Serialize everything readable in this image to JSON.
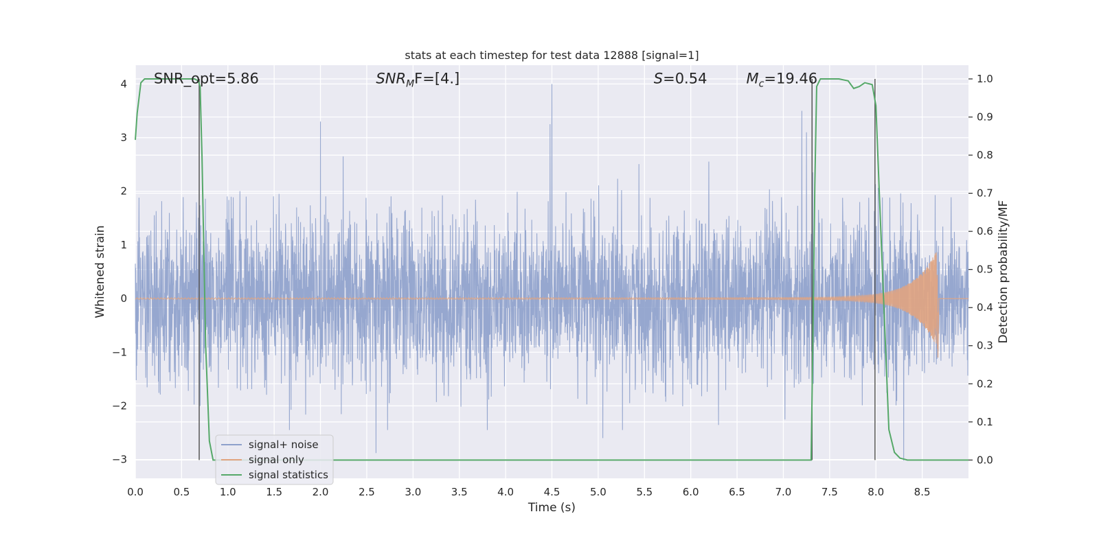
{
  "chart_data": {
    "type": "line",
    "title": "stats at each timestep for test data 12888 [signal=1]",
    "xlabel": "Time (s)",
    "ylabel": "Whitened strain",
    "ylabel_right": "Detection probability/MF",
    "xlim": [
      0.0,
      9.0
    ],
    "ylim": [
      -3.35,
      4.35
    ],
    "ylim_right": [
      -0.048,
      1.036
    ],
    "xticks": [
      0.0,
      0.5,
      1.0,
      1.5,
      2.0,
      2.5,
      3.0,
      3.5,
      4.0,
      4.5,
      5.0,
      5.5,
      6.0,
      6.5,
      7.0,
      7.5,
      8.0,
      8.5
    ],
    "xtick_labels": [
      "0.0",
      "0.5",
      "1.0",
      "1.5",
      "2.0",
      "2.5",
      "3.0",
      "3.5",
      "4.0",
      "4.5",
      "5.0",
      "5.5",
      "6.0",
      "6.5",
      "7.0",
      "7.5",
      "8.0",
      "8.5"
    ],
    "yticks": [
      -3,
      -2,
      -1,
      0,
      1,
      2,
      3,
      4
    ],
    "ytick_labels": [
      "−3",
      "−2",
      "−1",
      "0",
      "1",
      "2",
      "3",
      "4"
    ],
    "yticks_right": [
      0.0,
      0.1,
      0.2,
      0.3,
      0.4,
      0.5,
      0.6,
      0.7,
      0.8,
      0.9,
      1.0
    ],
    "ytick_labels_right": [
      "0.0",
      "0.1",
      "0.2",
      "0.3",
      "0.4",
      "0.5",
      "0.6",
      "0.7",
      "0.8",
      "0.9",
      "1.0"
    ],
    "grid": true,
    "legend_position": "lower-left",
    "colors": {
      "signal_noise": "#8da0cb",
      "signal_only": "#e1a47f",
      "statistics": "#55a868",
      "vline": "#555555",
      "background": "#eaeaf2",
      "grid": "#ffffff"
    },
    "series": [
      {
        "name": "signal+ noise",
        "axis": "left",
        "description_values": {
          "noise_std": 0.75,
          "peak_max": 4.0,
          "peak_min": -3.02,
          "x_range": [
            0.0,
            9.0
          ],
          "notable_peaks": [
            [
              2.0,
              3.3
            ],
            [
              4.5,
              4.0
            ],
            [
              4.48,
              3.25
            ],
            [
              7.2,
              3.5
            ],
            [
              7.25,
              3.1
            ],
            [
              0.7,
              -2.0
            ],
            [
              5.05,
              -2.6
            ],
            [
              8.3,
              -3.02
            ],
            [
              2.6,
              -2.88
            ]
          ]
        }
      },
      {
        "name": "signal only",
        "axis": "left",
        "description_values": {
          "type": "chirp",
          "t_merger": 8.67,
          "peak_amplitude": 0.95,
          "min_amplitude": -1.1
        }
      },
      {
        "name": "signal statistics",
        "axis": "right",
        "x": [
          0.0,
          0.02,
          0.06,
          0.1,
          0.2,
          0.4,
          0.6,
          0.64,
          0.68,
          0.7,
          0.72,
          0.76,
          0.8,
          0.84,
          1.0,
          2.0,
          4.0,
          6.0,
          7.3,
          7.32,
          7.34,
          7.36,
          7.4,
          7.5,
          7.6,
          7.7,
          7.76,
          7.82,
          7.88,
          7.96,
          8.0,
          8.04,
          8.1,
          8.14,
          8.2,
          8.26,
          8.34,
          8.5,
          9.0
        ],
        "y": [
          0.84,
          0.91,
          0.99,
          1.0,
          1.0,
          1.0,
          1.0,
          1.0,
          0.995,
          0.98,
          0.8,
          0.3,
          0.05,
          0.0,
          0.0,
          0.0,
          0.0,
          0.0,
          0.0,
          0.33,
          0.72,
          0.98,
          1.0,
          1.0,
          1.0,
          0.995,
          0.975,
          0.98,
          0.99,
          0.985,
          0.93,
          0.68,
          0.32,
          0.08,
          0.02,
          0.005,
          0.0,
          0.0,
          0.0
        ]
      }
    ],
    "vlines": [
      0.69,
      7.31,
      7.99
    ],
    "annotations": [
      {
        "text": "SNR_opt=5.86",
        "x": 0.2,
        "y": 4.0
      },
      {
        "base": "SNR",
        "sub": "M",
        "rest": "F=[4.]",
        "x": 2.6,
        "y": 4.0
      },
      {
        "base": "S",
        "rest": "=0.54",
        "x": 5.6,
        "y": 4.0
      },
      {
        "base": "M",
        "sub": "c",
        "rest": "=19.46",
        "x": 6.6,
        "y": 4.0
      }
    ]
  }
}
